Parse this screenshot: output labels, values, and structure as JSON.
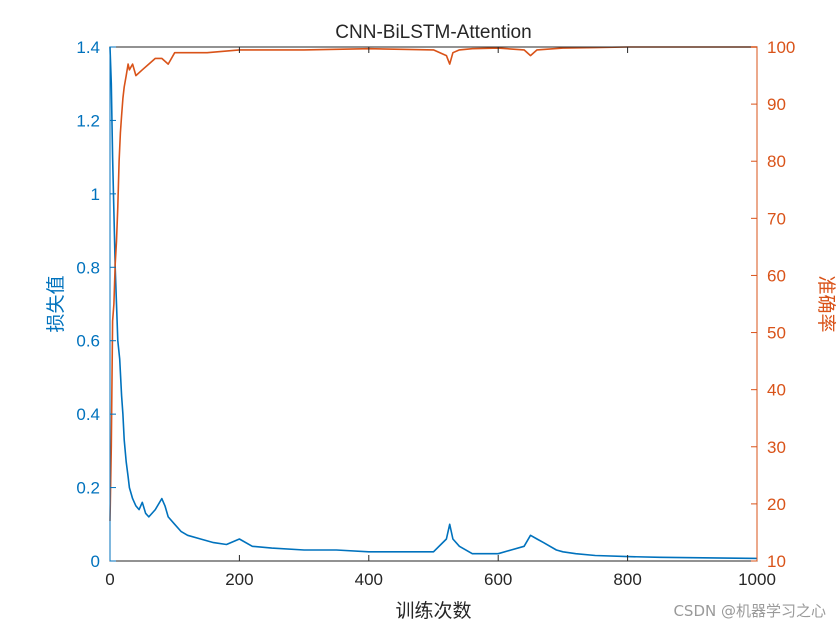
{
  "chart_data": {
    "type": "line",
    "title": "CNN-BiLSTM-Attention",
    "xlabel": "训练次数",
    "ylabel_left": "损失值",
    "ylabel_right": "准确率",
    "xlim": [
      0,
      1000
    ],
    "ylim_left": [
      0,
      1.4
    ],
    "ylim_right": [
      10,
      100
    ],
    "xticks": [
      "0",
      "200",
      "400",
      "600",
      "800",
      "1000"
    ],
    "yticks_left": [
      "0",
      "0.2",
      "0.4",
      "0.6",
      "0.8",
      "1",
      "1.2",
      "1.4"
    ],
    "yticks_right": [
      "10",
      "20",
      "30",
      "40",
      "50",
      "60",
      "70",
      "80",
      "90",
      "100"
    ],
    "colors": {
      "loss": "#0072bd",
      "accuracy": "#d95319",
      "axis": "#262626"
    },
    "grid": false,
    "series": [
      {
        "axis": "left",
        "color": "#0072bd",
        "x": [
          0,
          2,
          4,
          6,
          8,
          10,
          12,
          15,
          18,
          20,
          22,
          25,
          28,
          30,
          35,
          40,
          45,
          50,
          55,
          60,
          70,
          80,
          85,
          90,
          100,
          110,
          120,
          140,
          160,
          180,
          200,
          220,
          250,
          300,
          350,
          400,
          450,
          500,
          520,
          525,
          530,
          540,
          560,
          600,
          620,
          640,
          650,
          660,
          670,
          690,
          700,
          720,
          750,
          800,
          850,
          900,
          950,
          1000
        ],
        "y": [
          1.4,
          1.3,
          1.1,
          0.95,
          0.8,
          0.7,
          0.6,
          0.55,
          0.45,
          0.4,
          0.33,
          0.27,
          0.23,
          0.2,
          0.17,
          0.15,
          0.14,
          0.16,
          0.13,
          0.12,
          0.14,
          0.17,
          0.15,
          0.12,
          0.1,
          0.08,
          0.07,
          0.06,
          0.05,
          0.045,
          0.06,
          0.04,
          0.035,
          0.03,
          0.03,
          0.025,
          0.025,
          0.025,
          0.06,
          0.1,
          0.06,
          0.04,
          0.02,
          0.02,
          0.03,
          0.04,
          0.07,
          0.06,
          0.05,
          0.03,
          0.025,
          0.02,
          0.015,
          0.012,
          0.01,
          0.009,
          0.008,
          0.007
        ]
      },
      {
        "axis": "right",
        "color": "#d95319",
        "x": [
          0,
          2,
          4,
          6,
          8,
          10,
          12,
          14,
          16,
          18,
          20,
          22,
          25,
          28,
          30,
          35,
          40,
          50,
          60,
          70,
          80,
          90,
          100,
          120,
          150,
          200,
          250,
          300,
          400,
          500,
          520,
          525,
          530,
          540,
          560,
          600,
          640,
          650,
          660,
          700,
          750,
          800,
          900,
          950,
          1000
        ],
        "y": [
          17,
          30,
          52,
          55,
          62,
          66,
          72,
          80,
          85,
          88,
          91,
          93,
          95,
          97,
          96,
          97,
          95,
          96,
          97,
          98,
          98,
          97,
          99,
          99,
          99,
          99.5,
          99.5,
          99.5,
          99.7,
          99.5,
          98.5,
          97,
          99,
          99.5,
          99.7,
          99.8,
          99.5,
          98.5,
          99.5,
          99.8,
          99.9,
          100,
          100,
          100,
          100
        ]
      }
    ],
    "watermark": "CSDN @机器学习之心"
  }
}
